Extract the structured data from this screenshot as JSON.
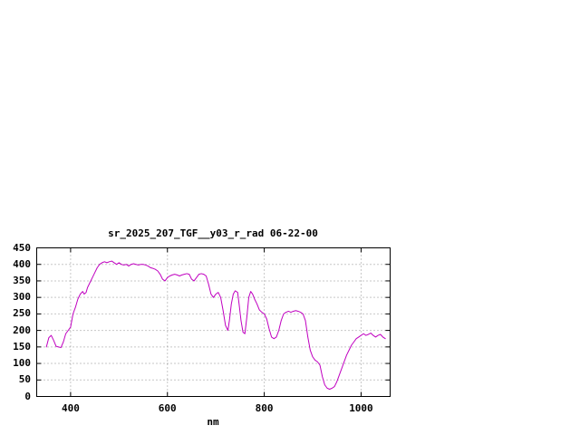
{
  "page": {
    "background_color": "#ffffff",
    "text_color": "#000000"
  },
  "chart_data": {
    "type": "line",
    "title": "sr_2025_207_TGF__y03_r_rad 06-22-00",
    "xlabel": "nm",
    "ylabel": "",
    "xlim": [
      330,
      1060
    ],
    "ylim": [
      0,
      450
    ],
    "x_ticks": [
      400,
      600,
      800,
      1000
    ],
    "y_ticks": [
      0,
      50,
      100,
      150,
      200,
      250,
      300,
      350,
      400,
      450
    ],
    "grid": true,
    "legend": "none",
    "line_color": "#c000c0",
    "grid_color": "#909090",
    "border_color": "#000000",
    "series": [
      {
        "name": "sr_2025_207_TGF__y03_r_rad",
        "x": [
          350,
          355,
          360,
          365,
          370,
          375,
          380,
          385,
          390,
          395,
          400,
          405,
          410,
          415,
          420,
          425,
          428,
          432,
          435,
          440,
          445,
          450,
          455,
          460,
          465,
          470,
          475,
          480,
          485,
          490,
          495,
          500,
          505,
          510,
          515,
          520,
          525,
          530,
          535,
          540,
          545,
          550,
          555,
          560,
          565,
          570,
          575,
          580,
          585,
          590,
          595,
          600,
          605,
          610,
          615,
          620,
          625,
          630,
          635,
          640,
          645,
          650,
          655,
          660,
          665,
          670,
          675,
          680,
          685,
          690,
          695,
          700,
          705,
          710,
          715,
          720,
          725,
          728,
          732,
          736,
          740,
          745,
          748,
          752,
          756,
          760,
          764,
          768,
          772,
          776,
          780,
          785,
          790,
          795,
          800,
          805,
          810,
          815,
          820,
          825,
          830,
          835,
          840,
          845,
          850,
          855,
          860,
          865,
          870,
          875,
          880,
          885,
          890,
          895,
          900,
          905,
          910,
          915,
          920,
          925,
          930,
          935,
          940,
          945,
          950,
          955,
          960,
          965,
          970,
          975,
          980,
          985,
          990,
          995,
          1000,
          1005,
          1010,
          1015,
          1020,
          1025,
          1030,
          1035,
          1040,
          1045,
          1050
        ],
        "y": [
          150,
          178,
          185,
          170,
          152,
          150,
          148,
          165,
          190,
          200,
          210,
          250,
          270,
          295,
          310,
          318,
          310,
          315,
          330,
          345,
          360,
          375,
          390,
          400,
          405,
          408,
          405,
          408,
          410,
          405,
          400,
          405,
          400,
          398,
          400,
          395,
          400,
          402,
          400,
          398,
          400,
          400,
          398,
          395,
          390,
          388,
          385,
          380,
          370,
          355,
          350,
          360,
          365,
          368,
          370,
          368,
          365,
          368,
          370,
          372,
          370,
          355,
          350,
          360,
          370,
          372,
          370,
          365,
          340,
          310,
          300,
          310,
          315,
          300,
          260,
          215,
          200,
          230,
          280,
          310,
          320,
          315,
          280,
          230,
          195,
          190,
          240,
          300,
          318,
          310,
          295,
          280,
          262,
          255,
          250,
          235,
          205,
          180,
          175,
          180,
          200,
          230,
          250,
          255,
          258,
          255,
          258,
          260,
          258,
          255,
          250,
          230,
          180,
          140,
          120,
          110,
          105,
          95,
          60,
          35,
          25,
          22,
          25,
          30,
          45,
          65,
          85,
          105,
          125,
          140,
          155,
          165,
          175,
          180,
          185,
          190,
          185,
          188,
          192,
          185,
          180,
          185,
          188,
          180,
          175
        ]
      }
    ]
  }
}
